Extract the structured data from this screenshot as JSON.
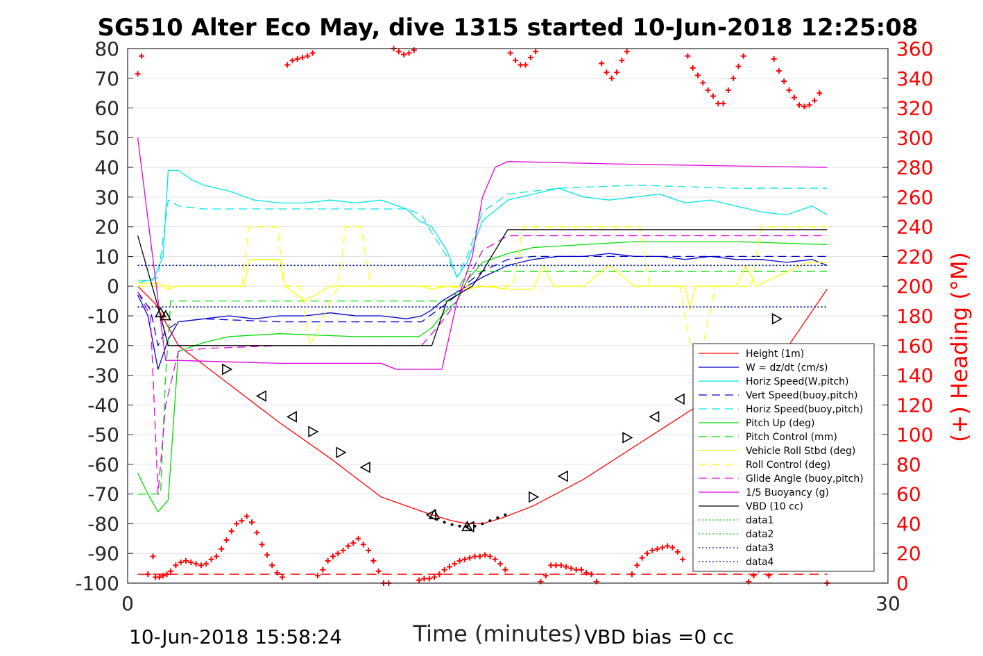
{
  "title": "SG510 Alter Eco May, dive 1315 started 10-Jun-2018 12:25:08",
  "footer_left": "10-Jun-2018 15:58:24",
  "footer_right": "VBD bias =0 cc",
  "colors": {
    "height": "#ff0000",
    "w": "#0000cc",
    "horiz": "#00e5e5",
    "pitch": "#00dd00",
    "roll": "#ffff00",
    "glide": "#e000e0",
    "vbd": "#000000",
    "data12": "#00cc00",
    "data34": "#0000aa",
    "heading": "#ff0000"
  },
  "chart_data": {
    "type": "line",
    "xlabel": "Time (minutes)",
    "ylabel_right": "(+) Heading (°M)",
    "xlim": [
      0,
      30
    ],
    "ylim_left": [
      -100,
      80
    ],
    "ylim_right": [
      0,
      360
    ],
    "xticks": [
      "0",
      "30"
    ],
    "yticks_left": [
      "80",
      "70",
      "60",
      "50",
      "40",
      "30",
      "20",
      "10",
      "0",
      "-10",
      "-20",
      "-30",
      "-40",
      "-50",
      "-60",
      "-70",
      "-80",
      "-90",
      "-100"
    ],
    "yticks_right": [
      "360",
      "340",
      "320",
      "300",
      "280",
      "260",
      "240",
      "220",
      "200",
      "180",
      "160",
      "140",
      "120",
      "100",
      "80",
      "60",
      "40",
      "20",
      "0"
    ],
    "grid": true,
    "legend_position": "bottom-right",
    "legend": [
      {
        "label": "Height (1m)",
        "color": "#ff0000",
        "dash": ""
      },
      {
        "label": "W = dz/dt (cm/s)",
        "color": "#0000cc",
        "dash": ""
      },
      {
        "label": "Horiz Speed(W,pitch)",
        "color": "#00e5e5",
        "dash": ""
      },
      {
        "label": "Vert Speed(buoy,pitch)",
        "color": "#0000cc",
        "dash": "12,7"
      },
      {
        "label": "Horiz Speed(buoy,pitch)",
        "color": "#00e5e5",
        "dash": "12,7"
      },
      {
        "label": "Pitch Up (deg)",
        "color": "#00dd00",
        "dash": ""
      },
      {
        "label": "Pitch Control (mm)",
        "color": "#00dd00",
        "dash": "12,7"
      },
      {
        "label": "Vehicle Roll Stbd (deg)",
        "color": "#ffff00",
        "dash": ""
      },
      {
        "label": "Roll Control (deg)",
        "color": "#ffff00",
        "dash": "12,7"
      },
      {
        "label": "Glide Angle (buoy,pitch)",
        "color": "#e000e0",
        "dash": "12,7"
      },
      {
        "label": "1/5 Buoyancy (g)",
        "color": "#e000e0",
        "dash": ""
      },
      {
        "label": "VBD (10 cc)",
        "color": "#000000",
        "dash": ""
      },
      {
        "label": "data1",
        "color": "#00cc00",
        "dash": "2,3"
      },
      {
        "label": "data2",
        "color": "#00cc00",
        "dash": "2,3"
      },
      {
        "label": "data3",
        "color": "#0000aa",
        "dash": "2,3"
      },
      {
        "label": "data4",
        "color": "#0000aa",
        "dash": "2,3"
      }
    ],
    "series": [
      {
        "key": "height",
        "axis": "left",
        "color": "#ff0000",
        "dash": "",
        "x": [
          0.4,
          1.1,
          2.0,
          4.0,
          6.0,
          8.0,
          10.0,
          12.0,
          12.8,
          13.4,
          14.0,
          14.8,
          16.0,
          18.0,
          20.0,
          22.0,
          24.0,
          26.0,
          27.6
        ],
        "y": [
          0,
          -6,
          -20,
          -33,
          -46,
          -58,
          -71,
          -77,
          -79,
          -80,
          -80,
          -78,
          -74,
          -65,
          -54,
          -43,
          -32,
          -21,
          -1
        ]
      },
      {
        "key": "w",
        "axis": "left",
        "color": "#0000cc",
        "dash": "",
        "x": [
          0.4,
          0.8,
          1.2,
          1.6,
          2.0,
          3,
          4,
          5,
          6,
          7,
          8,
          9,
          10,
          11,
          11.6,
          12.0,
          12.4,
          12.8,
          13.4,
          14.0,
          15.0,
          16,
          17,
          18,
          19,
          20,
          21,
          22,
          23,
          24,
          25,
          26,
          27,
          27.6
        ],
        "y": [
          -3,
          -10,
          -28,
          -18,
          -12,
          -11,
          -10,
          -11,
          -10,
          -10,
          -9,
          -10,
          -10,
          -11,
          -10,
          -8,
          -5,
          -3,
          0,
          3,
          7,
          9,
          10,
          10,
          11,
          10,
          10,
          9,
          10,
          9,
          9,
          8,
          9,
          7
        ]
      },
      {
        "key": "horiz_w",
        "axis": "left",
        "color": "#00e5e5",
        "dash": "",
        "x": [
          0.4,
          1.0,
          1.4,
          1.6,
          2.0,
          2.5,
          3,
          4,
          5,
          6,
          7,
          8,
          9,
          10,
          11,
          11.5,
          12.0,
          12.6,
          13.0,
          13.4,
          14.0,
          15.0,
          16,
          17,
          18,
          19,
          20,
          21,
          22,
          23,
          24,
          25,
          26,
          27,
          27.6
        ],
        "y": [
          2,
          2,
          10,
          39,
          39,
          36,
          34,
          32,
          29,
          28,
          28,
          29,
          28,
          29,
          26,
          22,
          20,
          12,
          3,
          8,
          22,
          29,
          31,
          33,
          30,
          29,
          30,
          31,
          28,
          29,
          27,
          25,
          24,
          27,
          24
        ]
      },
      {
        "key": "vert_buoy",
        "axis": "left",
        "color": "#0000cc",
        "dash": "12,7",
        "x": [
          0.4,
          0.9,
          1.2,
          1.5,
          2.0,
          3,
          6,
          9,
          11.6,
          12.4,
          13.0,
          13.4,
          14.0,
          15.0,
          16,
          20,
          24,
          27.6
        ],
        "y": [
          -2,
          -8,
          -20,
          -15,
          -12,
          -11,
          -12,
          -12,
          -12,
          -7,
          -3,
          1,
          5,
          9,
          10,
          10,
          10,
          10
        ]
      },
      {
        "key": "horiz_buoy",
        "axis": "left",
        "color": "#00e5e5",
        "dash": "12,7",
        "x": [
          0.4,
          1.2,
          1.6,
          2.0,
          3,
          6,
          9,
          11.0,
          11.6,
          12.0,
          12.6,
          13.0,
          13.4,
          14.0,
          15.0,
          17,
          20,
          24,
          27.6
        ],
        "y": [
          1,
          3,
          29,
          27,
          26,
          26,
          26,
          26,
          24,
          18,
          10,
          3,
          10,
          25,
          31,
          33,
          34,
          33,
          33
        ]
      },
      {
        "key": "pitch",
        "axis": "left",
        "color": "#00dd00",
        "dash": "",
        "x": [
          0.4,
          0.8,
          1.2,
          1.6,
          2.0,
          3,
          4,
          6,
          9,
          11.5,
          12.0,
          12.6,
          13.0,
          13.4,
          14.0,
          15.0,
          16,
          20,
          24,
          27.6
        ],
        "y": [
          -63,
          -70,
          -76,
          -72,
          -22,
          -19,
          -17,
          -16,
          -17,
          -17,
          -14,
          -8,
          -5,
          2,
          8,
          11,
          13,
          15,
          15,
          14
        ]
      },
      {
        "key": "pitch_control",
        "axis": "left",
        "color": "#00dd00",
        "dash": "12,7",
        "x": [
          0.4,
          1.3,
          1.5,
          1.7,
          12.0,
          12.8,
          13.4,
          27.6
        ],
        "y": [
          -70,
          -70,
          -30,
          -5,
          -5,
          -5,
          5,
          5
        ]
      },
      {
        "key": "roll",
        "axis": "left",
        "color": "#ffff00",
        "dash": "",
        "x": [
          0.4,
          1.2,
          1.6,
          2.0,
          3,
          4,
          4.6,
          4.8,
          5.5,
          6.0,
          6.2,
          7,
          8,
          8.7,
          9.0,
          10,
          11,
          11.6,
          12.0,
          12.6,
          13.4,
          14.0,
          15.0,
          16,
          16.4,
          16.8,
          18,
          19,
          20,
          21,
          22,
          22.2,
          22.4,
          23,
          24,
          24.4,
          24.8,
          26.8,
          27.6
        ],
        "y": [
          1,
          1,
          -1,
          0,
          0,
          0,
          0,
          9,
          9,
          9,
          0,
          -5,
          0,
          0,
          0,
          0,
          0,
          0,
          -1,
          0,
          -1,
          0,
          -1,
          -1,
          7,
          0,
          0,
          7,
          0,
          0,
          0,
          -8,
          0,
          0,
          0,
          7,
          0,
          8,
          8
        ]
      },
      {
        "key": "roll_control",
        "axis": "left",
        "color": "#ffff00",
        "dash": "12,7",
        "x": [
          0.4,
          4.5,
          4.8,
          5.4,
          5.9,
          6.2,
          6.8,
          7.2,
          8.3,
          8.6,
          9.2,
          9.6,
          15.2,
          15.6,
          20.2,
          20.6,
          21.8,
          22.2,
          22.7,
          23.2,
          24.6,
          25.0,
          27.6
        ],
        "y": [
          0,
          0,
          20,
          20,
          20,
          0,
          0,
          -20,
          0,
          20,
          20,
          0,
          0,
          20,
          20,
          0,
          0,
          -20,
          -20,
          0,
          0,
          20,
          20
        ]
      },
      {
        "key": "glide",
        "axis": "left",
        "color": "#e000e0",
        "dash": "12,7",
        "x": [
          0.4,
          0.9,
          1.2,
          1.5,
          2.0,
          3,
          6,
          9,
          11.6,
          12.4,
          13.0,
          13.4,
          14.0,
          15.0,
          16,
          20,
          24,
          27.6
        ],
        "y": [
          -2,
          -10,
          -70,
          -40,
          -22,
          -21,
          -20,
          -20,
          -20,
          -12,
          -5,
          2,
          12,
          17,
          17,
          17,
          17,
          17
        ]
      },
      {
        "key": "buoyancy",
        "axis": "left",
        "color": "#e000e0",
        "dash": "",
        "x": [
          0.4,
          1.5,
          2.0,
          6.0,
          10.0,
          10.6,
          11.0,
          12.4,
          13.0,
          13.6,
          14.0,
          14.5,
          15.0,
          20.0,
          27.6
        ],
        "y": [
          50,
          -25,
          -25,
          -26,
          -26,
          -28,
          -28,
          -28,
          -5,
          10,
          30,
          40,
          42,
          41,
          40
        ]
      },
      {
        "key": "vbd",
        "axis": "left",
        "color": "#000000",
        "dash": "",
        "x": [
          0.4,
          1.3,
          1.6,
          12.0,
          12.6,
          13.0,
          13.6,
          14.0,
          15.0,
          20.0,
          27.6
        ],
        "y": [
          17,
          -10,
          -20,
          -20,
          -5,
          -3,
          0,
          5,
          19,
          19,
          19
        ]
      },
      {
        "key": "data1",
        "axis": "left",
        "color": "#00cc00",
        "dash": "2,3",
        "x": [
          0.4,
          27.6
        ],
        "y": [
          7,
          7
        ]
      },
      {
        "key": "data2",
        "axis": "left",
        "color": "#00cc00",
        "dash": "2,3",
        "x": [
          0.4,
          27.6
        ],
        "y": [
          -7,
          -7
        ]
      },
      {
        "key": "data3",
        "axis": "left",
        "color": "#0000aa",
        "dash": "2,3",
        "x": [
          0.4,
          27.6
        ],
        "y": [
          7,
          7
        ]
      },
      {
        "key": "data4",
        "axis": "left",
        "color": "#0000aa",
        "dash": "2,3",
        "x": [
          0.4,
          27.6
        ],
        "y": [
          -7,
          -7
        ]
      },
      {
        "key": "heading_ref",
        "axis": "right",
        "color": "#ff0000",
        "dash": "14,8",
        "x": [
          0.4,
          27.6
        ],
        "y": [
          6,
          6
        ]
      }
    ],
    "heading_points": {
      "x": [
        0.4,
        0.55,
        0.8,
        1.0,
        1.1,
        1.25,
        1.4,
        1.55,
        1.7,
        1.9,
        2.1,
        2.3,
        2.5,
        2.7,
        2.9,
        3.1,
        3.3,
        3.5,
        3.7,
        3.9,
        4.1,
        4.3,
        4.5,
        4.7,
        4.9,
        5.1,
        5.3,
        5.5,
        5.7,
        5.9,
        6.1,
        6.3,
        6.5,
        6.7,
        6.9,
        7.1,
        7.3,
        7.5,
        7.7,
        7.9,
        8.1,
        8.3,
        8.5,
        8.7,
        8.9,
        9.1,
        9.3,
        9.5,
        9.7,
        9.9,
        10.1,
        10.3,
        10.5,
        10.7,
        10.9,
        11.1,
        11.3,
        11.5,
        11.7,
        11.9,
        12.1,
        12.3,
        12.5,
        12.7,
        12.9,
        13.1,
        13.3,
        13.5,
        13.7,
        13.9,
        14.1,
        14.3,
        14.5,
        14.7,
        14.9,
        15.1,
        15.3,
        15.5,
        15.7,
        15.9,
        16.1,
        16.3,
        16.5,
        16.7,
        16.9,
        17.1,
        17.3,
        17.5,
        17.7,
        17.9,
        18.1,
        18.3,
        18.5,
        18.7,
        18.9,
        19.1,
        19.3,
        19.5,
        19.7,
        19.9,
        20.1,
        20.3,
        20.5,
        20.7,
        20.9,
        21.1,
        21.3,
        21.5,
        21.7,
        21.9,
        22.1,
        22.3,
        22.5,
        22.7,
        22.9,
        23.1,
        23.3,
        23.5,
        23.7,
        23.9,
        24.1,
        24.3,
        24.5,
        24.7,
        24.9,
        25.1,
        25.3,
        25.5,
        25.7,
        25.9,
        26.1,
        26.3,
        26.5,
        26.7,
        26.9,
        27.1,
        27.3,
        27.6
      ],
      "y": [
        343,
        355,
        6,
        18,
        4,
        4,
        5,
        6,
        8,
        12,
        14,
        15,
        14,
        13,
        12,
        13,
        16,
        18,
        23,
        29,
        35,
        40,
        42,
        45,
        41,
        34,
        26,
        19,
        12,
        7,
        4,
        349,
        352,
        353,
        354,
        355,
        357,
        5,
        9,
        15,
        18,
        20,
        22,
        25,
        27,
        30,
        26,
        22,
        15,
        8,
        0,
        0,
        360,
        358,
        356,
        357,
        359,
        2,
        3,
        3,
        4,
        6,
        9,
        11,
        13,
        15,
        16,
        17,
        18,
        18,
        19,
        18,
        16,
        13,
        9,
        357,
        352,
        349,
        349,
        354,
        358,
        1,
        5,
        12,
        12,
        12,
        11,
        10,
        9,
        9,
        7,
        6,
        1,
        350,
        344,
        340,
        344,
        352,
        358,
        6,
        12,
        17,
        20,
        22,
        23,
        24,
        25,
        24,
        21,
        16,
        355,
        347,
        342,
        337,
        332,
        328,
        323,
        323,
        332,
        340,
        348,
        355,
        1,
        5,
        9,
        11,
        5,
        353,
        345,
        338,
        332,
        327,
        322,
        321,
        322,
        325,
        330,
        0
      ]
    },
    "triangle_markers": [
      {
        "x": 1.3,
        "y": -9,
        "dir": "up"
      },
      {
        "x": 1.5,
        "y": -10,
        "dir": "up"
      },
      {
        "x": 3.9,
        "y": -28,
        "dir": "right"
      },
      {
        "x": 5.3,
        "y": -37,
        "dir": "left"
      },
      {
        "x": 6.5,
        "y": -44,
        "dir": "left"
      },
      {
        "x": 7.3,
        "y": -49,
        "dir": "right"
      },
      {
        "x": 8.4,
        "y": -56,
        "dir": "right"
      },
      {
        "x": 9.4,
        "y": -61,
        "dir": "left"
      },
      {
        "x": 12.0,
        "y": -77,
        "dir": "left"
      },
      {
        "x": 12.1,
        "y": -77,
        "dir": "up"
      },
      {
        "x": 13.4,
        "y": -81,
        "dir": "up"
      },
      {
        "x": 13.5,
        "y": -81,
        "dir": "left"
      },
      {
        "x": 16.0,
        "y": -71,
        "dir": "right"
      },
      {
        "x": 17.2,
        "y": -64,
        "dir": "left"
      },
      {
        "x": 19.7,
        "y": -51,
        "dir": "right"
      },
      {
        "x": 20.8,
        "y": -44,
        "dir": "left"
      },
      {
        "x": 21.8,
        "y": -38,
        "dir": "left"
      },
      {
        "x": 22.7,
        "y": -33,
        "dir": "left"
      },
      {
        "x": 25.6,
        "y": -11,
        "dir": "right"
      }
    ],
    "bottom_dots": {
      "x": [
        12.2,
        12.5,
        12.8,
        13.1,
        13.4,
        13.7,
        14.0,
        14.3,
        14.6,
        14.9
      ],
      "y": [
        -78.5,
        -79.5,
        -80.3,
        -80.8,
        -81,
        -80.8,
        -80,
        -79,
        -78,
        -77
      ]
    }
  }
}
